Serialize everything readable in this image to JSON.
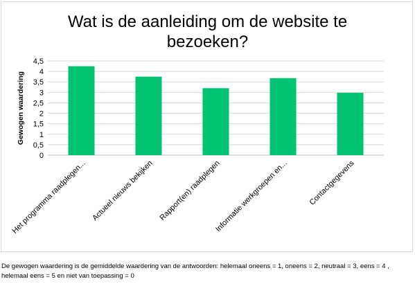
{
  "chart_data": {
    "type": "bar",
    "title": "Wat is de aanleiding om de website te bezoeken?",
    "ylabel": "Gewogen waardering",
    "xlabel": "",
    "categories": [
      "Het programma raadplegen...",
      "Actueel nieuws bekijken",
      "Rapport(en) raadplegen",
      "Informatie werkgroepen en...",
      "Contactgegevens"
    ],
    "values": [
      4.25,
      3.75,
      3.2,
      3.68,
      2.98
    ],
    "ylim": [
      0,
      4.5
    ],
    "yticks": [
      "0",
      "0,5",
      "1",
      "1,5",
      "2",
      "2,5",
      "3",
      "3,5",
      "4",
      "4,5"
    ],
    "grid": true,
    "legend": "none",
    "bar_color": "#00c472",
    "grid_color": "#d9d9d9"
  },
  "footnote": "De gewogen waardering is de gemiddelde waardering van de antwoorden: helemaal oneens = 1, oneens = 2, neutraal = 3, eens = 4 , helemaal eens = 5 en niet van toepassing = 0"
}
